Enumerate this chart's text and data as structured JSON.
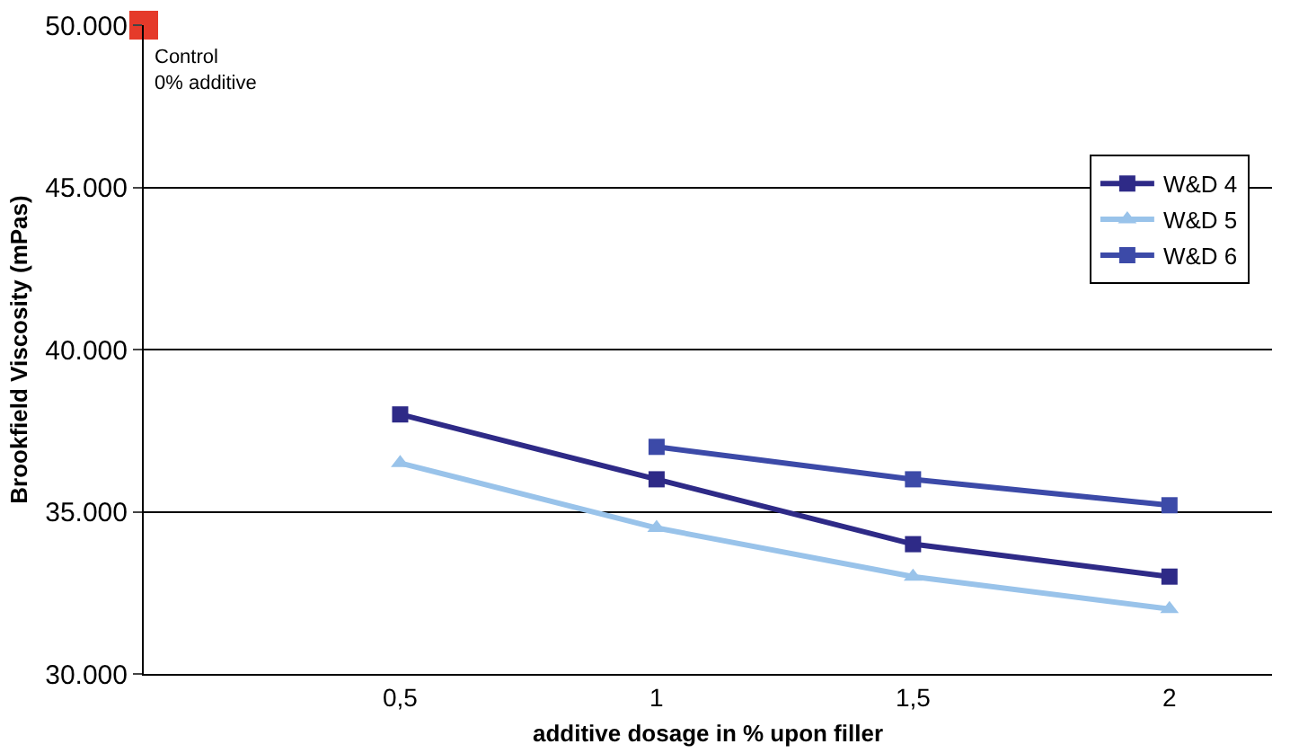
{
  "chart_data": {
    "type": "line",
    "xlabel": "additive dosage in % upon filler",
    "ylabel": "Brookfield Viscosity (mPas)",
    "xlim": [
      0,
      2.2
    ],
    "xticks": [
      {
        "value": 0.5,
        "label": "0,5"
      },
      1,
      {
        "value": 1.5,
        "label": "1,5"
      },
      2
    ],
    "ylim": [
      30000,
      50000
    ],
    "yticks": [
      {
        "value": 30000,
        "label": "30.000"
      },
      {
        "value": 35000,
        "label": "35.000"
      },
      {
        "value": 40000,
        "label": "40.000"
      },
      {
        "value": 45000,
        "label": "45.000"
      },
      {
        "value": 50000,
        "label": "50.000"
      }
    ],
    "grid": "y",
    "legend": "top right",
    "line_style": "solid",
    "series": [
      {
        "name": "W&D 4",
        "color": "#2e2a87",
        "marker": "square",
        "x": [
          0.5,
          1,
          1.5,
          2
        ],
        "values": [
          38000,
          36000,
          34000,
          33000
        ]
      },
      {
        "name": "W&D 5",
        "color": "#99c3ea",
        "marker": "triangle",
        "x": [
          0.5,
          1,
          1.5,
          2
        ],
        "values": [
          36500,
          34500,
          33000,
          32000
        ]
      },
      {
        "name": "W&D 6",
        "color": "#3c4aa8",
        "marker": "square",
        "x": [
          1,
          1.5,
          2
        ],
        "values": [
          37000,
          36000,
          35200
        ]
      },
      {
        "type": "scatter",
        "color": "#e53a2a",
        "marker": "square",
        "x": [
          0
        ],
        "values": [
          50000
        ]
      }
    ],
    "annotations": [
      {
        "text": "Control\n0% additive",
        "x": 0,
        "y": 50000
      }
    ]
  }
}
